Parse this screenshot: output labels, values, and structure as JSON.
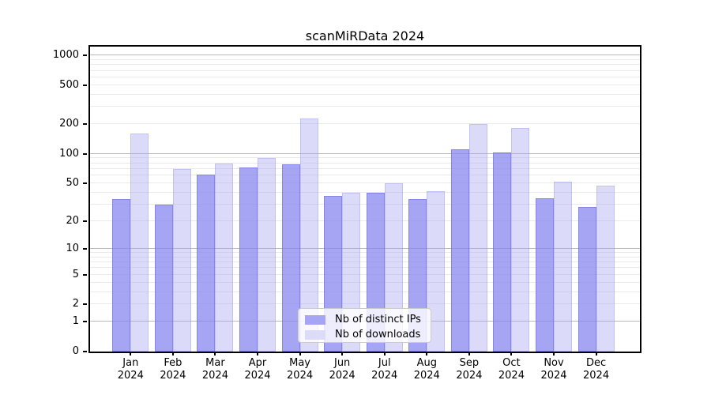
{
  "chart_data": {
    "type": "bar",
    "title": "scanMiRData 2024",
    "categories": [
      "Jan",
      "Feb",
      "Mar",
      "Apr",
      "May",
      "Jun",
      "Jul",
      "Aug",
      "Sep",
      "Oct",
      "Nov",
      "Dec"
    ],
    "year": "2024",
    "series": [
      {
        "name": "Nb of distinct IPs",
        "color": "#a5a5f4",
        "values": [
          34,
          30,
          61,
          73,
          78,
          37,
          40,
          34,
          112,
          103,
          35,
          28
        ]
      },
      {
        "name": "Nb of downloads",
        "color": "#dcdcf8",
        "values": [
          160,
          70,
          80,
          90,
          230,
          40,
          50,
          41,
          200,
          182,
          52,
          47
        ]
      }
    ],
    "yscale": "log1p",
    "ylim": [
      0,
      1230
    ],
    "yticks": [
      0,
      1,
      2,
      5,
      10,
      20,
      50,
      100,
      200,
      500,
      1000
    ],
    "minor_gridlines": [
      2,
      3,
      4,
      5,
      6,
      7,
      8,
      9,
      20,
      30,
      40,
      50,
      60,
      70,
      80,
      90,
      200,
      300,
      400,
      500,
      600,
      700,
      800,
      900
    ],
    "major_gridlines": [
      1,
      10,
      100,
      1000
    ],
    "xlabel": "",
    "ylabel": "",
    "grid": true,
    "legend_position": "lower center"
  }
}
